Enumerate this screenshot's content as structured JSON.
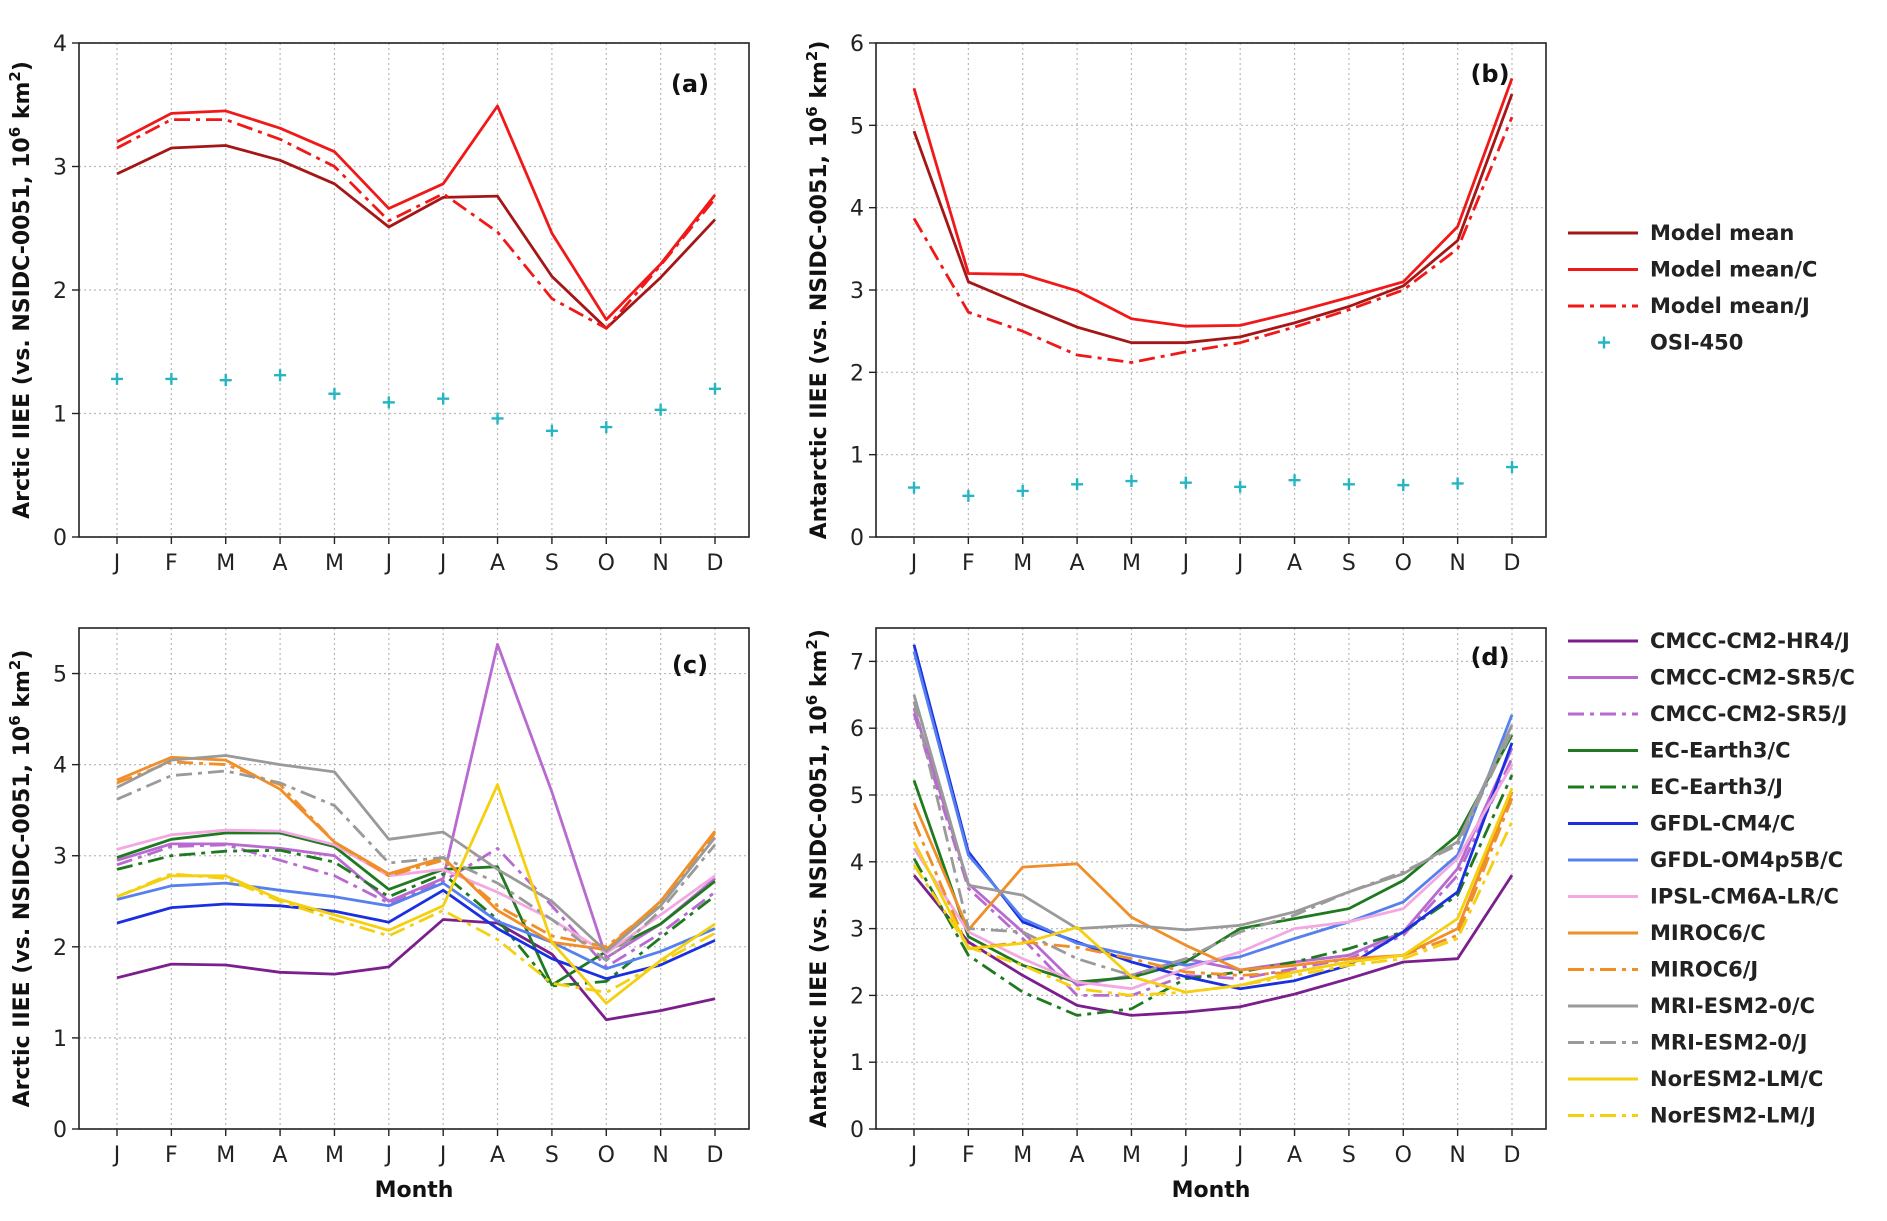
{
  "chart_data": [
    {
      "type": "line",
      "panel_label": "(a)",
      "ylabel": "Arctic IIEE (vs. NSIDC-0051, 10",
      "ylabel_sup": "6",
      "ylabel_unit": " km",
      "ylabel_unit_sup": "2",
      "ylabel_close": ")",
      "xlabel": "",
      "ylim": [
        0,
        4
      ],
      "yticks": [
        "0",
        "1",
        "2",
        "3",
        "4"
      ],
      "categories": [
        "J",
        "F",
        "M",
        "A",
        "M",
        "J",
        "J",
        "A",
        "S",
        "O",
        "N",
        "D"
      ],
      "grid": true,
      "series": [
        {
          "name": "Model mean",
          "color": "#a51616",
          "style": "solid",
          "values": [
            2.94,
            3.15,
            3.17,
            3.05,
            2.86,
            2.51,
            2.75,
            2.76,
            2.11,
            1.69,
            2.1,
            2.57
          ]
        },
        {
          "name": "Model mean/C",
          "color": "#f01818",
          "style": "solid",
          "values": [
            3.2,
            3.43,
            3.45,
            3.31,
            3.12,
            2.66,
            2.86,
            3.49,
            2.46,
            1.76,
            2.21,
            2.77
          ]
        },
        {
          "name": "Model mean/J",
          "color": "#f01818",
          "style": "dashdot",
          "values": [
            3.15,
            3.38,
            3.38,
            3.22,
            3.0,
            2.56,
            2.78,
            2.47,
            1.93,
            1.69,
            2.2,
            2.74
          ]
        },
        {
          "name": "OSI-450",
          "color": "#27b5c2",
          "style": "marker",
          "values": [
            1.28,
            1.28,
            1.27,
            1.31,
            1.16,
            1.09,
            1.12,
            0.96,
            0.86,
            0.89,
            1.03,
            1.2
          ]
        }
      ]
    },
    {
      "type": "line",
      "panel_label": "(b)",
      "ylabel": "Antarctic IIEE (vs. NSIDC-0051, 10",
      "ylabel_sup": "6",
      "ylabel_unit": " km",
      "ylabel_unit_sup": "2",
      "ylabel_close": ")",
      "xlabel": "",
      "ylim": [
        0,
        6
      ],
      "yticks": [
        "0",
        "1",
        "2",
        "3",
        "4",
        "5",
        "6"
      ],
      "categories": [
        "J",
        "F",
        "M",
        "A",
        "M",
        "J",
        "J",
        "A",
        "S",
        "O",
        "N",
        "D"
      ],
      "grid": true,
      "series": [
        {
          "name": "Model mean",
          "color": "#a51616",
          "style": "solid",
          "values": [
            4.93,
            3.1,
            2.82,
            2.55,
            2.36,
            2.36,
            2.43,
            2.6,
            2.8,
            3.05,
            3.6,
            5.38
          ]
        },
        {
          "name": "Model mean/C",
          "color": "#f01818",
          "style": "solid",
          "values": [
            5.45,
            3.2,
            3.19,
            2.99,
            2.65,
            2.56,
            2.57,
            2.73,
            2.91,
            3.1,
            3.77,
            5.57
          ]
        },
        {
          "name": "Model mean/J",
          "color": "#f01818",
          "style": "dashdot",
          "values": [
            3.87,
            2.73,
            2.5,
            2.21,
            2.12,
            2.25,
            2.36,
            2.55,
            2.76,
            3.0,
            3.5,
            5.1
          ]
        },
        {
          "name": "OSI-450",
          "color": "#27b5c2",
          "style": "marker",
          "values": [
            0.6,
            0.5,
            0.56,
            0.64,
            0.68,
            0.66,
            0.61,
            0.69,
            0.64,
            0.63,
            0.65,
            0.85
          ]
        }
      ]
    },
    {
      "type": "line",
      "panel_label": "(c)",
      "ylabel": "Arctic IIEE (vs. NSIDC-0051, 10",
      "ylabel_sup": "6",
      "ylabel_unit": " km",
      "ylabel_unit_sup": "2",
      "ylabel_close": ")",
      "xlabel": "Month",
      "ylim": [
        0,
        5.5
      ],
      "yticks": [
        "0",
        "1",
        "2",
        "3",
        "4",
        "5"
      ],
      "categories": [
        "J",
        "F",
        "M",
        "A",
        "M",
        "J",
        "J",
        "A",
        "S",
        "O",
        "N",
        "D"
      ],
      "grid": true,
      "series": [
        {
          "name": "CMCC-CM2-HR4/J",
          "color": "#7b1f8c",
          "style": "solid",
          "values": [
            1.66,
            1.81,
            1.8,
            1.72,
            1.7,
            1.78,
            2.3,
            2.26,
            1.92,
            1.2,
            1.3,
            1.43
          ]
        },
        {
          "name": "CMCC-CM2-SR5/C",
          "color": "#b86ad0",
          "style": "solid",
          "values": [
            2.95,
            3.13,
            3.13,
            3.08,
            3.0,
            2.5,
            2.75,
            5.32,
            3.7,
            1.88,
            2.25,
            2.75
          ]
        },
        {
          "name": "CMCC-CM2-SR5/J",
          "color": "#b86ad0",
          "style": "dashdot",
          "values": [
            2.9,
            3.1,
            3.12,
            2.95,
            2.78,
            2.48,
            2.72,
            3.08,
            2.45,
            1.78,
            2.15,
            2.6
          ]
        },
        {
          "name": "EC-Earth3/C",
          "color": "#1f7a1f",
          "style": "solid",
          "values": [
            2.98,
            3.18,
            3.25,
            3.25,
            3.1,
            2.63,
            2.85,
            2.88,
            1.58,
            1.95,
            2.25,
            2.72
          ]
        },
        {
          "name": "EC-Earth3/J",
          "color": "#1f7a1f",
          "style": "dashdot",
          "values": [
            2.85,
            3.0,
            3.05,
            3.06,
            2.93,
            2.55,
            2.8,
            2.3,
            1.57,
            1.62,
            2.1,
            2.56
          ]
        },
        {
          "name": "GFDL-CM4/C",
          "color": "#1a2fe0",
          "style": "solid",
          "values": [
            2.26,
            2.43,
            2.47,
            2.45,
            2.39,
            2.27,
            2.62,
            2.2,
            1.87,
            1.65,
            1.8,
            2.07
          ]
        },
        {
          "name": "GFDL-OM4p5B/C",
          "color": "#5580ee",
          "style": "solid",
          "values": [
            2.52,
            2.67,
            2.7,
            2.62,
            2.55,
            2.45,
            2.7,
            2.28,
            2.05,
            1.76,
            1.95,
            2.2
          ]
        },
        {
          "name": "IPSL-CM6A-LR/C",
          "color": "#f2a8e0",
          "style": "solid",
          "values": [
            3.07,
            3.23,
            3.28,
            3.27,
            3.12,
            2.78,
            2.85,
            2.6,
            2.3,
            1.93,
            2.35,
            2.78
          ]
        },
        {
          "name": "MIROC6/C",
          "color": "#f08e28",
          "style": "solid",
          "values": [
            3.83,
            4.08,
            4.05,
            3.73,
            3.15,
            2.8,
            2.98,
            2.4,
            2.05,
            1.97,
            2.5,
            3.27
          ]
        },
        {
          "name": "MIROC6/J",
          "color": "#f08e28",
          "style": "dashdot",
          "values": [
            3.8,
            4.03,
            4.0,
            3.78,
            3.15,
            2.78,
            2.95,
            2.45,
            2.12,
            2.0,
            2.48,
            3.25
          ]
        },
        {
          "name": "MRI-ESM2-0/C",
          "color": "#9a9a9a",
          "style": "solid",
          "values": [
            3.75,
            4.05,
            4.1,
            4.0,
            3.92,
            3.18,
            3.26,
            2.85,
            2.5,
            1.95,
            2.45,
            3.2
          ]
        },
        {
          "name": "MRI-ESM2-0/J",
          "color": "#9a9a9a",
          "style": "dashdot",
          "values": [
            3.62,
            3.88,
            3.93,
            3.8,
            3.55,
            2.92,
            2.98,
            2.7,
            2.3,
            1.85,
            2.4,
            3.12
          ]
        },
        {
          "name": "NorESM2-LM/C",
          "color": "#f5d010",
          "style": "solid",
          "values": [
            2.55,
            2.78,
            2.78,
            2.52,
            2.35,
            2.18,
            2.45,
            3.78,
            2.05,
            1.38,
            1.85,
            2.25
          ]
        },
        {
          "name": "NorESM2-LM/J",
          "color": "#f5d010",
          "style": "dashdot",
          "values": [
            2.55,
            2.8,
            2.75,
            2.5,
            2.3,
            2.12,
            2.4,
            2.08,
            1.6,
            1.5,
            1.83,
            2.15
          ]
        }
      ]
    },
    {
      "type": "line",
      "panel_label": "(d)",
      "ylabel": "Antarctic IIEE (vs. NSIDC-0051, 10",
      "ylabel_sup": "6",
      "ylabel_unit": " km",
      "ylabel_unit_sup": "2",
      "ylabel_close": ")",
      "xlabel": "Month",
      "ylim": [
        0,
        7.5
      ],
      "yticks": [
        "0",
        "1",
        "2",
        "3",
        "4",
        "5",
        "6",
        "7"
      ],
      "categories": [
        "J",
        "F",
        "M",
        "A",
        "M",
        "J",
        "J",
        "A",
        "S",
        "O",
        "N",
        "D"
      ],
      "grid": true,
      "series": [
        {
          "name": "CMCC-CM2-HR4/J",
          "color": "#7b1f8c",
          "style": "solid",
          "values": [
            3.8,
            2.8,
            2.3,
            1.85,
            1.7,
            1.75,
            1.83,
            2.02,
            2.25,
            2.5,
            2.55,
            3.8
          ]
        },
        {
          "name": "CMCC-CM2-SR5/C",
          "color": "#b86ad0",
          "style": "solid",
          "values": [
            6.3,
            3.67,
            2.95,
            2.15,
            2.3,
            2.55,
            2.38,
            2.5,
            2.6,
            2.95,
            3.9,
            5.7
          ]
        },
        {
          "name": "CMCC-CM2-SR5/J",
          "color": "#b86ad0",
          "style": "dashdot",
          "values": [
            6.22,
            3.6,
            2.85,
            2.0,
            2.0,
            2.3,
            2.25,
            2.4,
            2.55,
            2.9,
            3.8,
            5.55
          ]
        },
        {
          "name": "EC-Earth3/C",
          "color": "#1f7a1f",
          "style": "solid",
          "values": [
            5.22,
            2.88,
            2.45,
            2.2,
            2.27,
            2.5,
            3.0,
            3.15,
            3.3,
            3.72,
            4.4,
            5.9
          ]
        },
        {
          "name": "EC-Earth3/J",
          "color": "#1f7a1f",
          "style": "dashdot",
          "values": [
            4.05,
            2.6,
            2.05,
            1.7,
            1.8,
            2.25,
            2.35,
            2.5,
            2.7,
            2.95,
            3.5,
            5.3
          ]
        },
        {
          "name": "GFDL-CM4/C",
          "color": "#1a2fe0",
          "style": "solid",
          "values": [
            7.25,
            4.15,
            3.1,
            2.8,
            2.5,
            2.28,
            2.1,
            2.22,
            2.45,
            2.95,
            3.55,
            5.78
          ]
        },
        {
          "name": "GFDL-OM4p5B/C",
          "color": "#5580ee",
          "style": "solid",
          "values": [
            7.15,
            4.1,
            3.15,
            2.78,
            2.6,
            2.45,
            2.58,
            2.85,
            3.1,
            3.4,
            4.1,
            6.2
          ]
        },
        {
          "name": "IPSL-CM6A-LR/C",
          "color": "#f2a8e0",
          "style": "solid",
          "values": [
            4.2,
            2.95,
            2.55,
            2.2,
            2.1,
            2.4,
            2.65,
            3.0,
            3.1,
            3.3,
            4.05,
            5.45
          ]
        },
        {
          "name": "MIROC6/C",
          "color": "#f08e28",
          "style": "solid",
          "values": [
            4.88,
            2.98,
            3.92,
            3.97,
            3.17,
            2.75,
            2.38,
            2.45,
            2.55,
            2.6,
            3.0,
            5.05
          ]
        },
        {
          "name": "MIROC6/J",
          "color": "#f08e28",
          "style": "dashdot",
          "values": [
            4.6,
            2.7,
            2.8,
            2.72,
            2.55,
            2.35,
            2.3,
            2.35,
            2.5,
            2.6,
            2.9,
            4.95
          ]
        },
        {
          "name": "MRI-ESM2-0/C",
          "color": "#9a9a9a",
          "style": "solid",
          "values": [
            6.5,
            3.65,
            3.5,
            3.0,
            3.05,
            2.98,
            3.05,
            3.25,
            3.55,
            3.82,
            4.3,
            6.05
          ]
        },
        {
          "name": "MRI-ESM2-0/J",
          "color": "#9a9a9a",
          "style": "dashdot",
          "values": [
            6.4,
            3.0,
            2.95,
            2.55,
            2.3,
            2.55,
            2.95,
            3.2,
            3.55,
            3.85,
            4.25,
            5.95
          ]
        },
        {
          "name": "NorESM2-LM/C",
          "color": "#f5d010",
          "style": "solid",
          "values": [
            4.3,
            2.7,
            2.78,
            3.02,
            2.28,
            2.05,
            2.15,
            2.35,
            2.5,
            2.6,
            3.15,
            5.1
          ]
        },
        {
          "name": "NorESM2-LM/J",
          "color": "#f5d010",
          "style": "dashdot",
          "values": [
            3.95,
            2.72,
            2.45,
            2.1,
            2.0,
            2.05,
            2.15,
            2.3,
            2.45,
            2.55,
            2.85,
            4.6
          ]
        }
      ]
    }
  ]
}
